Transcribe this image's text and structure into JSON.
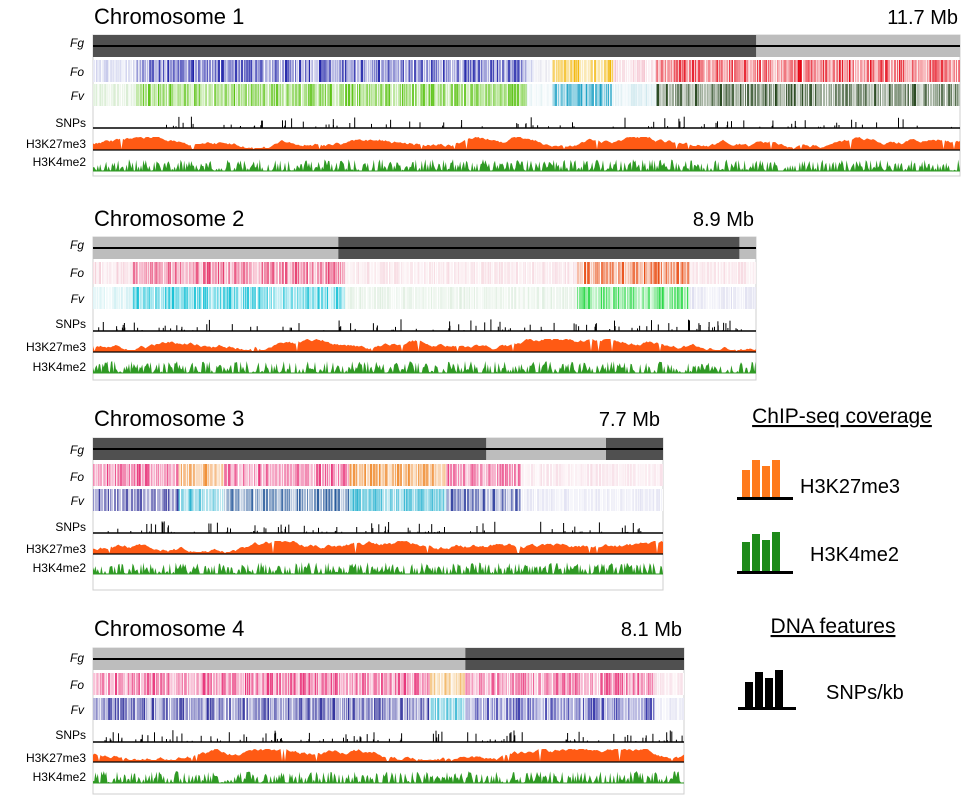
{
  "colors": {
    "fg_dark": "#505050",
    "fg_light": "#bdbdbd",
    "h3k27me3": "#ff5a14",
    "h3k4me2": "#2f9a24",
    "snps": "#000000",
    "frame": "#cfcfcf"
  },
  "chromosomes": [
    {
      "title": "Chromosome 1",
      "size_label": "11.7 Mb",
      "track_labels": {
        "fg": "Fg",
        "fo": "Fo",
        "fv": "Fv",
        "snps": "SNPs",
        "k27": "H3K27me3",
        "k4": "H3K4me2"
      },
      "fg_blocks": [
        {
          "from": 0,
          "to": 0.765,
          "shade": "dark"
        },
        {
          "from": 0.765,
          "to": 1,
          "shade": "light"
        }
      ],
      "fo_blocks": [
        {
          "from": 0,
          "to": 0.05,
          "color": "#c5c8ea"
        },
        {
          "from": 0.05,
          "to": 0.5,
          "color": "#1f22a8"
        },
        {
          "from": 0.5,
          "to": 0.51,
          "color": "#c5c8ea"
        },
        {
          "from": 0.51,
          "to": 0.53,
          "color": "#e8e8f0"
        },
        {
          "from": 0.53,
          "to": 0.6,
          "color": "#f2b400"
        },
        {
          "from": 0.6,
          "to": 0.65,
          "color": "#f4c3cf"
        },
        {
          "from": 0.65,
          "to": 1,
          "color": "#e3000f"
        }
      ],
      "fv_blocks": [
        {
          "from": 0,
          "to": 0.05,
          "color": "#cfe8c8"
        },
        {
          "from": 0.05,
          "to": 0.5,
          "color": "#57c10e"
        },
        {
          "from": 0.5,
          "to": 0.53,
          "color": "#e5f2f5"
        },
        {
          "from": 0.53,
          "to": 0.6,
          "color": "#1aa0c4"
        },
        {
          "from": 0.6,
          "to": 0.65,
          "color": "#cfe8ee"
        },
        {
          "from": 0.65,
          "to": 1,
          "color": "#1b3d12"
        }
      ]
    },
    {
      "title": "Chromosome 2",
      "size_label": "8.9 Mb",
      "track_labels": {
        "fg": "Fg",
        "fo": "Fo",
        "fv": "Fv",
        "snps": "SNPs",
        "k27": "H3K27me3",
        "k4": "H3K4me2"
      },
      "fg_blocks": [
        {
          "from": 0,
          "to": 0.37,
          "shade": "light"
        },
        {
          "from": 0.37,
          "to": 0.975,
          "shade": "dark"
        },
        {
          "from": 0.975,
          "to": 1,
          "shade": "light"
        }
      ],
      "fo_blocks": [
        {
          "from": 0,
          "to": 0.06,
          "color": "#f5d0da"
        },
        {
          "from": 0.06,
          "to": 0.38,
          "color": "#e63c6e"
        },
        {
          "from": 0.38,
          "to": 0.73,
          "color": "#f7dbe2"
        },
        {
          "from": 0.73,
          "to": 0.9,
          "color": "#e84a10"
        },
        {
          "from": 0.9,
          "to": 1,
          "color": "#f7dbe2"
        }
      ],
      "fv_blocks": [
        {
          "from": 0,
          "to": 0.06,
          "color": "#cdeef2"
        },
        {
          "from": 0.06,
          "to": 0.38,
          "color": "#19c1d6"
        },
        {
          "from": 0.38,
          "to": 0.73,
          "color": "#dfeee0"
        },
        {
          "from": 0.73,
          "to": 0.9,
          "color": "#2ed84a"
        },
        {
          "from": 0.9,
          "to": 1,
          "color": "#dcdcee"
        }
      ]
    },
    {
      "title": "Chromosome 3",
      "size_label": "7.7 Mb",
      "track_labels": {
        "fg": "Fg",
        "fo": "Fo",
        "fv": "Fv",
        "snps": "SNPs",
        "k27": "H3K27me3",
        "k4": "H3K4me2"
      },
      "fg_blocks": [
        {
          "from": 0,
          "to": 0.69,
          "shade": "dark"
        },
        {
          "from": 0.69,
          "to": 0.9,
          "shade": "light"
        },
        {
          "from": 0.9,
          "to": 1,
          "shade": "dark"
        }
      ],
      "fo_blocks": [
        {
          "from": 0,
          "to": 0.15,
          "color": "#e8357a"
        },
        {
          "from": 0.15,
          "to": 0.23,
          "color": "#f0913a"
        },
        {
          "from": 0.23,
          "to": 0.45,
          "color": "#e8357a"
        },
        {
          "from": 0.45,
          "to": 0.62,
          "color": "#f0913a"
        },
        {
          "from": 0.62,
          "to": 0.75,
          "color": "#e8357a"
        },
        {
          "from": 0.75,
          "to": 1,
          "color": "#f7dde6"
        }
      ],
      "fv_blocks": [
        {
          "from": 0,
          "to": 0.15,
          "color": "#3a3a9e"
        },
        {
          "from": 0.15,
          "to": 0.23,
          "color": "#2ab3d0"
        },
        {
          "from": 0.23,
          "to": 0.45,
          "color": "#24579a"
        },
        {
          "from": 0.45,
          "to": 0.62,
          "color": "#2ab3d0"
        },
        {
          "from": 0.62,
          "to": 0.75,
          "color": "#2f3f9e"
        },
        {
          "from": 0.75,
          "to": 1,
          "color": "#e2e2f2"
        }
      ]
    },
    {
      "title": "Chromosome 4",
      "size_label": "8.1 Mb",
      "track_labels": {
        "fg": "Fg",
        "fo": "Fo",
        "fv": "Fv",
        "snps": "SNPs",
        "k27": "H3K27me3",
        "k4": "H3K4me2"
      },
      "fg_blocks": [
        {
          "from": 0,
          "to": 0.63,
          "shade": "light"
        },
        {
          "from": 0.63,
          "to": 1,
          "shade": "dark"
        }
      ],
      "fo_blocks": [
        {
          "from": 0,
          "to": 0.57,
          "color": "#e8357a"
        },
        {
          "from": 0.57,
          "to": 0.63,
          "color": "#f2b96a"
        },
        {
          "from": 0.63,
          "to": 0.95,
          "color": "#e8357a"
        },
        {
          "from": 0.95,
          "to": 1,
          "color": "#f7dde6"
        }
      ],
      "fv_blocks": [
        {
          "from": 0,
          "to": 0.57,
          "color": "#2f2f9c"
        },
        {
          "from": 0.57,
          "to": 0.63,
          "color": "#2ab3d0"
        },
        {
          "from": 0.63,
          "to": 0.95,
          "color": "#3b3bab"
        },
        {
          "from": 0.95,
          "to": 1,
          "color": "#e2e2f2"
        }
      ]
    }
  ],
  "legend": {
    "chip_heading": "ChIP-seq coverage",
    "k27_label": "H3K27me3",
    "k4_label": "H3K4me2",
    "dna_heading": "DNA features",
    "snp_label": "SNPs/kb"
  }
}
